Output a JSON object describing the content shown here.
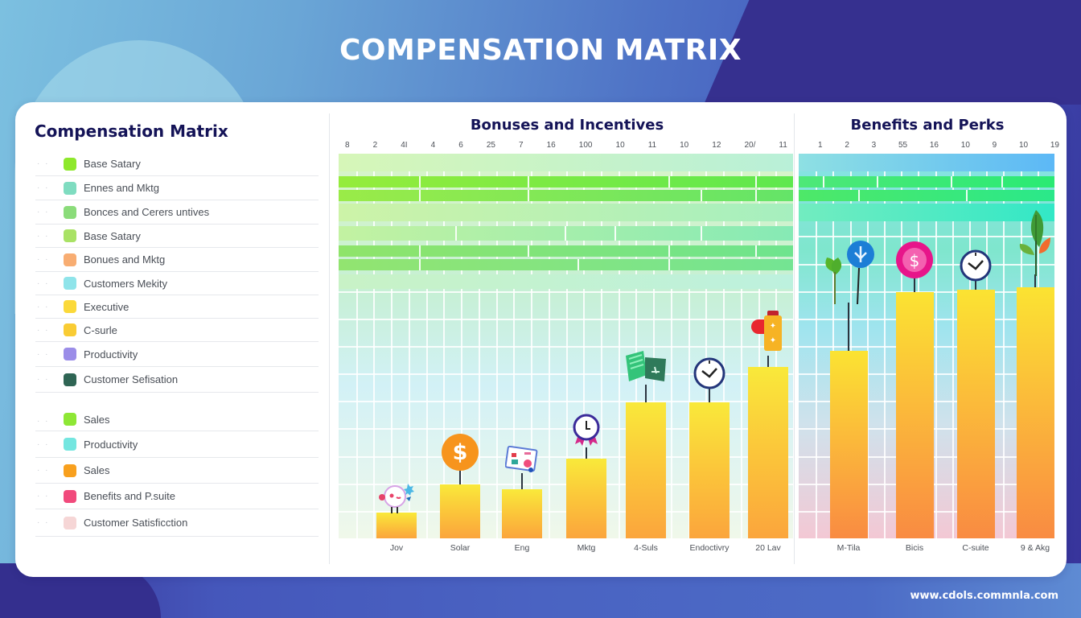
{
  "page": {
    "title": "COMPENSATION MATRIX",
    "footer_url": "www.cdols.commnla.com"
  },
  "legend": {
    "title": "Compensation Matrix",
    "items": [
      {
        "label": "Base Satary",
        "color": "#8ee82c"
      },
      {
        "label": "Ennes and Mktg",
        "color": "#7fdcc0"
      },
      {
        "label": "Bonces and Cerers untives",
        "color": "#8bdc7a"
      },
      {
        "label": "Base Satary",
        "color": "#a9e265"
      },
      {
        "label": "Bonues and Mktg",
        "color": "#f8ad72"
      },
      {
        "label": "Customers Mekity",
        "color": "#8fe4ea"
      },
      {
        "label": "Executive",
        "color": "#fbd93a"
      },
      {
        "label": "C-surle",
        "color": "#f9cc34"
      },
      {
        "label": "Productivity",
        "color": "#9b8de8"
      },
      {
        "label": "Customer Sefisation",
        "color": "#2f6554"
      },
      {
        "label": "Sales",
        "color": "#8ee735"
      },
      {
        "label": "Productivity",
        "color": "#74e6e0"
      },
      {
        "label": "Sales",
        "color": "#f8a01e"
      },
      {
        "label": "Benefits and P.suite",
        "color": "#f14a7c"
      },
      {
        "label": "Customer Satisficction",
        "color": "#f6d6d6"
      }
    ]
  },
  "chart_data": [
    {
      "type": "bar",
      "title": "Bonuses and Incentives",
      "top_tick_labels": [
        "8",
        "2",
        "4I",
        "4",
        "6",
        "25",
        "7",
        "16",
        "100",
        "10",
        "11",
        "10",
        "12",
        "20/",
        "11"
      ],
      "categories": [
        "Jov",
        "Solar",
        "Eng",
        "Mktg",
        "4-Suls",
        "Endoctivry",
        "20 Lav"
      ],
      "values": [
        10,
        21,
        19,
        31,
        53,
        53,
        67
      ],
      "ylim": [
        0,
        150
      ],
      "icons": [
        "mascot",
        "dollar-coin",
        "dashboard-card",
        "award-clock",
        "money-book",
        "clock",
        "gift-tag"
      ],
      "xlabel": "",
      "ylabel": "",
      "grid": true
    },
    {
      "type": "bar",
      "title": "Benefits and Perks",
      "top_tick_labels": [
        "1",
        "2",
        "3",
        "55",
        "16",
        "10",
        "9",
        "10",
        "19"
      ],
      "categories": [
        "M-Tila",
        "Bicis",
        "C-suite",
        "9 & Akg"
      ],
      "values": [
        73,
        96,
        97,
        98
      ],
      "ylim": [
        0,
        150
      ],
      "icons": [
        "plant-badge",
        "pink-coin",
        "clock",
        "leaf-plant"
      ],
      "xlabel": "",
      "ylabel": "",
      "grid": true
    }
  ],
  "colors": {
    "title_navy": "#141357",
    "bar_top": "#f9e93a",
    "bar_bottom": "#fba53c",
    "band_green": "#8ee840"
  }
}
